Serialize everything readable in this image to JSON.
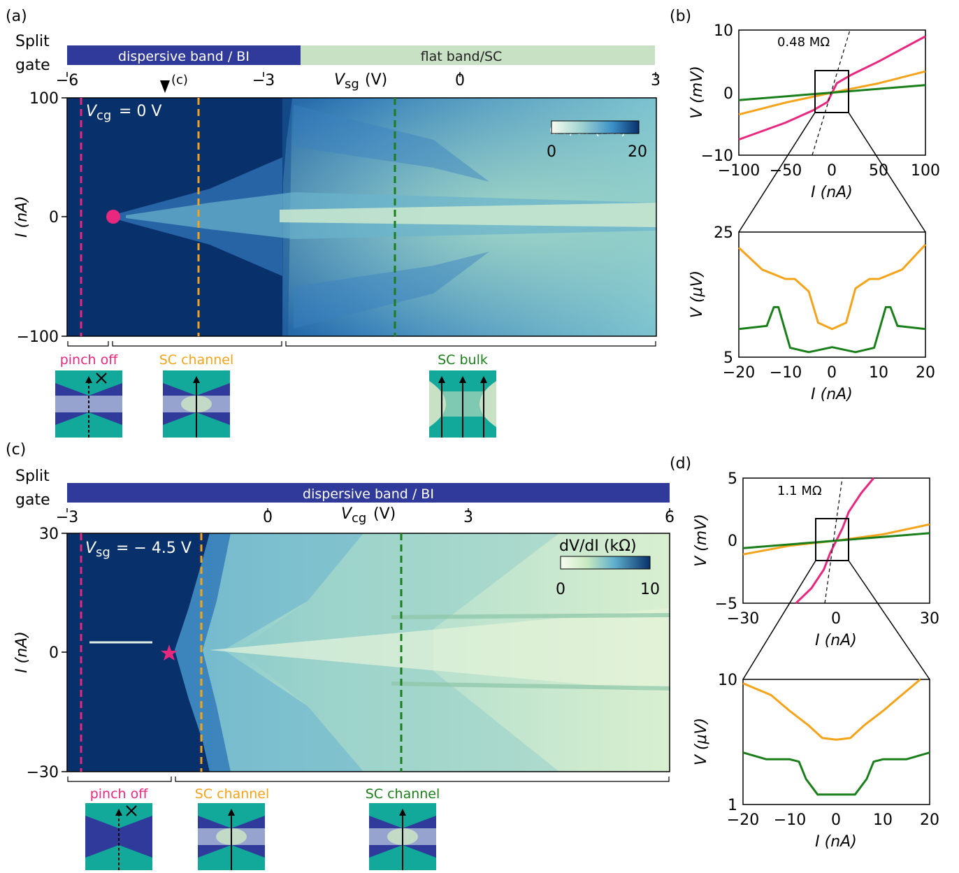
{
  "colors": {
    "magenta": "#e8287e",
    "orange": "#f5a31a",
    "green": "#1a7f1a",
    "dispersive": "#2f3a9a",
    "flat": "#c8e0c4",
    "teal": "#12a89a",
    "navy": "#08306b"
  },
  "panel_a": {
    "letter": "(a)",
    "split_gate_line1": "Split",
    "split_gate_line2": "gate",
    "band_dispersive": "dispersive band / BI",
    "band_flat": "flat band/SC",
    "xlabel_main": "V",
    "xlabel_sub": "sg",
    "xlabel_unit": "(V)",
    "ylabel": "I (nA)",
    "xticks": [
      "−6",
      "−3",
      "0",
      "3"
    ],
    "yticks": [
      "100",
      "0",
      "−100"
    ],
    "marker_c": "(c)",
    "vcg_label": "V",
    "vcg_sub": "cg",
    "vcg_value": "= 0 V",
    "cbar_title_a": "dV/dI (kΩ)",
    "cbar_min": "0",
    "cbar_max": "20",
    "regions": [
      "pinch off",
      "SC channel",
      "SC bulk"
    ]
  },
  "panel_b": {
    "letter": "(b)",
    "resistance": "0.48 MΩ",
    "top_ylabel": "V (mV)",
    "top_xlabel": "I (nA)",
    "top_xticks": [
      "−100",
      "−50",
      "0",
      "50",
      "100"
    ],
    "top_yticks": [
      "10",
      "0",
      "−10"
    ],
    "bottom_ylabel": "V (μV)",
    "bottom_xlabel": "I (nA)",
    "bottom_xticks": [
      "−20",
      "−10",
      "0",
      "10",
      "20"
    ],
    "bottom_yticks": [
      "25",
      "5"
    ]
  },
  "panel_c": {
    "letter": "(c)",
    "split_gate_line1": "Split",
    "split_gate_line2": "gate",
    "band_dispersive": "dispersive band / BI",
    "xlabel_main": "V",
    "xlabel_sub": "cg",
    "xlabel_unit": "(V)",
    "ylabel": "I (nA)",
    "xticks": [
      "−3",
      "0",
      "3",
      "6"
    ],
    "yticks": [
      "30",
      "0",
      "−30"
    ],
    "vsg_label": "V",
    "vsg_sub": "sg",
    "vsg_value": "= − 4.5 V",
    "cbar_title": "dV/dI (kΩ)",
    "cbar_min": "0",
    "cbar_max": "10",
    "regions": [
      "pinch off",
      "SC channel",
      "SC channel"
    ]
  },
  "panel_d": {
    "letter": "(d)",
    "resistance": "1.1 MΩ",
    "top_ylabel": "V (mV)",
    "top_xlabel": "I (nA)",
    "top_xticks": [
      "−30",
      "0",
      "30"
    ],
    "top_yticks": [
      "5",
      "0",
      "−5"
    ],
    "bottom_ylabel": "V (μV)",
    "bottom_xlabel": "I (nA)",
    "bottom_xticks": [
      "−20",
      "−10",
      "0",
      "10",
      "20"
    ],
    "bottom_yticks": [
      "10",
      "1"
    ]
  },
  "chart_data": [
    {
      "type": "heatmap",
      "panel": "a",
      "x": "Vsg (V)",
      "xlim": [
        -6,
        3
      ],
      "y": "I (nA)",
      "ylim": [
        -100,
        100
      ],
      "colorbar": "dV/dI (kΩ)",
      "clim": [
        0,
        20
      ],
      "cuts_vsg": [
        -5.55,
        -4.0,
        -1.0
      ],
      "marker": {
        "shape": "circle",
        "x": -5.1,
        "y": 0
      }
    },
    {
      "type": "line",
      "panel": "b-top",
      "xlim": [
        -100,
        100
      ],
      "ylim": [
        -10,
        10
      ],
      "series": [
        {
          "color": "magenta",
          "x": [
            -100,
            -50,
            -20,
            -5,
            0,
            5,
            20,
            50,
            100
          ],
          "y": [
            -7.5,
            -4.8,
            -2.8,
            -1.5,
            0,
            1.5,
            2.8,
            5,
            9
          ]
        },
        {
          "color": "orange",
          "x": [
            -100,
            -50,
            0,
            50,
            100
          ],
          "y": [
            -3.5,
            -1.6,
            0,
            1.5,
            3.4
          ]
        },
        {
          "color": "green",
          "x": [
            -100,
            0,
            100
          ],
          "y": [
            -1.2,
            0,
            1.2
          ]
        }
      ],
      "annotation": "0.48 MΩ"
    },
    {
      "type": "line",
      "panel": "b-bottom",
      "xlim": [
        -20,
        20
      ],
      "ylim": [
        5,
        25
      ],
      "series": [
        {
          "color": "orange",
          "x": [
            -20,
            -15,
            -10,
            -8,
            -5,
            -3,
            0,
            3,
            5,
            8,
            10,
            15,
            20
          ],
          "y": [
            22.5,
            19,
            17.5,
            17.5,
            15.5,
            10.5,
            9.5,
            10.5,
            16,
            17.5,
            17.5,
            19,
            23
          ]
        },
        {
          "color": "green",
          "x": [
            -20,
            -14,
            -12.5,
            -11.5,
            -9,
            -5,
            0,
            5,
            9,
            11.5,
            12.5,
            14,
            20
          ],
          "y": [
            9.5,
            10,
            13,
            13,
            6.5,
            5.8,
            6.6,
            5.8,
            6.5,
            13,
            13,
            10,
            9.5
          ]
        }
      ]
    },
    {
      "type": "heatmap",
      "panel": "c",
      "x": "Vcg (V)",
      "xlim": [
        -3,
        6
      ],
      "y": "I (nA)",
      "ylim": [
        -30,
        30
      ],
      "colorbar": "dV/dI (kΩ)",
      "clim": [
        0,
        10
      ],
      "cuts_vcg": [
        -2.75,
        -1.0,
        2.0
      ],
      "marker": {
        "shape": "star",
        "x": -1.5,
        "y": 0
      }
    },
    {
      "type": "line",
      "panel": "d-top",
      "xlim": [
        -30,
        30
      ],
      "ylim": [
        -5,
        5
      ],
      "series": [
        {
          "color": "magenta",
          "x": [
            -13,
            -8,
            -4,
            -2,
            0,
            2,
            4,
            8,
            12
          ],
          "y": [
            -5,
            -3.8,
            -2.3,
            -1.0,
            0,
            1.0,
            2.3,
            3.8,
            5
          ]
        },
        {
          "color": "orange",
          "x": [
            -30,
            -15,
            0,
            15,
            30
          ],
          "y": [
            -1.1,
            -0.4,
            0,
            0.5,
            1.3
          ]
        },
        {
          "color": "green",
          "x": [
            -30,
            0,
            30
          ],
          "y": [
            -0.6,
            0,
            0.6
          ]
        }
      ],
      "annotation": "1.1 MΩ"
    },
    {
      "type": "line",
      "panel": "d-bottom",
      "xlim": [
        -20,
        20
      ],
      "ylim": [
        1,
        10
      ],
      "series": [
        {
          "color": "orange",
          "x": [
            -20,
            -14,
            -10,
            -6,
            -3,
            0,
            3,
            6,
            10,
            14,
            18
          ],
          "y": [
            9.3,
            7.5,
            5.6,
            4.3,
            3.4,
            3.3,
            3.4,
            4.3,
            5.6,
            7.5,
            10
          ]
        },
        {
          "color": "green",
          "x": [
            -20,
            -15,
            -10,
            -8,
            -6.5,
            -4,
            0,
            4,
            6.5,
            8,
            10,
            15,
            20
          ],
          "y": [
            2.6,
            2.3,
            2.3,
            2.2,
            1.6,
            1.2,
            1.2,
            1.2,
            1.6,
            2.2,
            2.3,
            2.3,
            2.6
          ]
        }
      ]
    }
  ]
}
